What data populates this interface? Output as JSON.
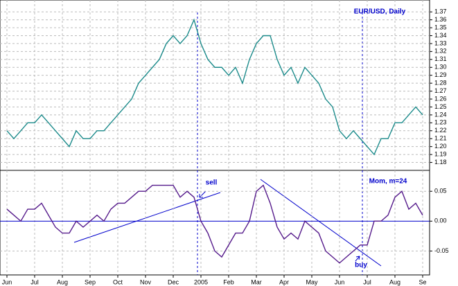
{
  "chart_data": [
    {
      "type": "line",
      "title": "EUR/USD, Daily",
      "color": "#1a8a8a",
      "values": [
        1.22,
        1.21,
        1.22,
        1.23,
        1.23,
        1.24,
        1.23,
        1.22,
        1.21,
        1.2,
        1.22,
        1.21,
        1.21,
        1.22,
        1.22,
        1.23,
        1.24,
        1.25,
        1.26,
        1.28,
        1.29,
        1.3,
        1.31,
        1.33,
        1.34,
        1.33,
        1.34,
        1.36,
        1.33,
        1.31,
        1.3,
        1.3,
        1.29,
        1.3,
        1.28,
        1.31,
        1.33,
        1.34,
        1.34,
        1.31,
        1.29,
        1.3,
        1.28,
        1.3,
        1.29,
        1.28,
        1.26,
        1.25,
        1.22,
        1.21,
        1.22,
        1.21,
        1.2,
        1.19,
        1.21,
        1.21,
        1.23,
        1.23,
        1.24,
        1.25,
        1.24
      ],
      "ylim": [
        1.17,
        1.385
      ],
      "yticks": [
        1.18,
        1.19,
        {
          "value": 1.2,
          "label": "1.20"
        },
        1.21,
        1.22,
        1.23,
        1.24,
        1.25,
        1.26,
        1.27,
        1.28,
        1.29,
        {
          "value": 1.3,
          "label": "1.30"
        },
        1.31,
        1.32,
        1.33,
        1.34,
        1.35,
        1.36,
        1.37
      ],
      "grid": true
    },
    {
      "type": "line",
      "title": "Mom, m=24",
      "color": "#551a8b",
      "annotations": [
        "sell",
        "buy"
      ],
      "categories": [
        "Jun",
        null,
        null,
        null,
        "Jul",
        null,
        null,
        null,
        "Aug",
        null,
        null,
        null,
        "Sep",
        null,
        null,
        null,
        "Oct",
        null,
        null,
        null,
        "Nov",
        null,
        null,
        null,
        "Dec",
        null,
        null,
        null,
        "2005",
        null,
        null,
        null,
        "Feb",
        null,
        null,
        null,
        "Mar",
        null,
        null,
        null,
        "Apr",
        null,
        null,
        null,
        "May",
        null,
        null,
        null,
        "Jun",
        null,
        null,
        null,
        "Jul",
        null,
        null,
        null,
        "Aug",
        null,
        null,
        null,
        "Se"
      ],
      "values": [
        0.02,
        0.01,
        0.0,
        0.02,
        0.02,
        0.03,
        0.01,
        -0.01,
        -0.02,
        -0.02,
        0.0,
        -0.01,
        0.0,
        0.01,
        0.0,
        0.02,
        0.03,
        0.03,
        0.04,
        0.05,
        0.05,
        0.06,
        0.06,
        0.06,
        0.06,
        0.04,
        0.05,
        0.04,
        0.0,
        -0.02,
        -0.05,
        -0.06,
        -0.04,
        -0.02,
        -0.02,
        0.0,
        0.05,
        0.06,
        0.03,
        -0.01,
        -0.03,
        -0.02,
        -0.03,
        0.0,
        -0.01,
        -0.02,
        -0.05,
        -0.06,
        -0.07,
        -0.06,
        -0.05,
        -0.04,
        -0.04,
        0.0,
        0.0,
        0.01,
        0.04,
        0.05,
        0.02,
        0.03,
        0.01
      ],
      "ylim": [
        -0.09,
        0.085
      ],
      "yticks": [
        0.05,
        {
          "value": 0,
          "label": "0.00"
        },
        -0.05
      ],
      "grid": true
    }
  ]
}
